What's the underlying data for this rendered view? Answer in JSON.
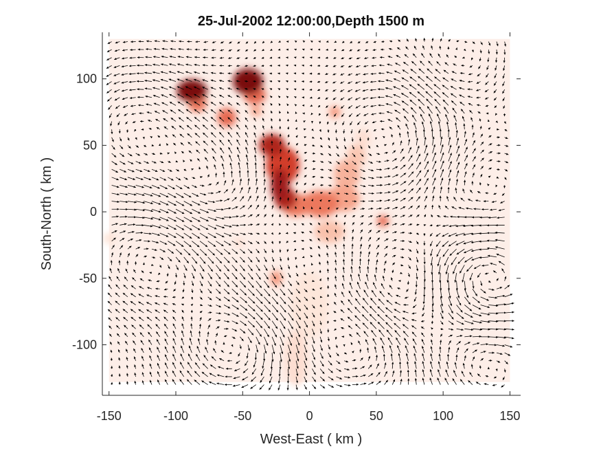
{
  "chart_data": {
    "type": "heatmap",
    "title": "25-Jul-2002 12:00:00,Depth 1500 m",
    "xlabel": "West-East ( km )",
    "ylabel": "South-North ( km )",
    "xlim": [
      -155,
      158
    ],
    "ylim": [
      -138,
      135
    ],
    "xticks": [
      -150,
      -100,
      -50,
      0,
      50,
      100,
      150
    ],
    "yticks": [
      -100,
      -50,
      0,
      50,
      100
    ],
    "xtick_labels": [
      "-150",
      "-100",
      "-50",
      "0",
      "50",
      "100",
      "150"
    ],
    "ytick_labels": [
      "-100",
      "-50",
      "0",
      "50",
      "100"
    ],
    "grid": false,
    "colormap": [
      "#fff4ee",
      "#fbd0bd",
      "#f2876a",
      "#d23c2b",
      "#7a0a0e"
    ],
    "field_background": "#fdeee8",
    "concentration_blobs": [
      {
        "x": -88,
        "y": 91,
        "sx": 8,
        "sy": 6,
        "level": 1.0
      },
      {
        "x": -84,
        "y": 82,
        "sx": 5,
        "sy": 5,
        "level": 0.55
      },
      {
        "x": -46,
        "y": 98,
        "sx": 8,
        "sy": 7,
        "level": 1.0
      },
      {
        "x": -41,
        "y": 88,
        "sx": 6,
        "sy": 5,
        "level": 0.6
      },
      {
        "x": -62,
        "y": 71,
        "sx": 5,
        "sy": 5,
        "level": 0.6
      },
      {
        "x": -40,
        "y": 76,
        "sx": 3,
        "sy": 3,
        "level": 0.4
      },
      {
        "x": 19,
        "y": 75,
        "sx": 3,
        "sy": 3,
        "level": 0.45
      },
      {
        "x": -28,
        "y": 50,
        "sx": 7,
        "sy": 6,
        "level": 0.85
      },
      {
        "x": -20,
        "y": 35,
        "sx": 9,
        "sy": 10,
        "level": 0.75
      },
      {
        "x": -22,
        "y": 20,
        "sx": 5,
        "sy": 9,
        "level": 0.9
      },
      {
        "x": -18,
        "y": 10,
        "sx": 6,
        "sy": 6,
        "level": 0.85
      },
      {
        "x": -10,
        "y": 5,
        "sx": 8,
        "sy": 6,
        "level": 0.55
      },
      {
        "x": 8,
        "y": 6,
        "sx": 10,
        "sy": 7,
        "level": 0.55
      },
      {
        "x": 25,
        "y": 10,
        "sx": 9,
        "sy": 7,
        "level": 0.4
      },
      {
        "x": 28,
        "y": 28,
        "sx": 7,
        "sy": 8,
        "level": 0.35
      },
      {
        "x": 35,
        "y": 42,
        "sx": 5,
        "sy": 6,
        "level": 0.28
      },
      {
        "x": 15,
        "y": -15,
        "sx": 8,
        "sy": 6,
        "level": 0.3
      },
      {
        "x": 55,
        "y": -7,
        "sx": 3,
        "sy": 3,
        "level": 0.6
      },
      {
        "x": -25,
        "y": -50,
        "sx": 3,
        "sy": 4,
        "level": 0.45
      },
      {
        "x": -53,
        "y": -23,
        "sx": 2,
        "sy": 2,
        "level": 0.2
      },
      {
        "x": -150,
        "y": -20,
        "sx": 3,
        "sy": 3,
        "level": 0.12
      },
      {
        "x": -10,
        "y": -110,
        "sx": 6,
        "sy": 15,
        "level": 0.15
      },
      {
        "x": 0,
        "y": -70,
        "sx": 10,
        "sy": 18,
        "level": 0.1
      },
      {
        "x": 40,
        "y": 55,
        "sx": 4,
        "sy": 5,
        "level": 0.15
      }
    ],
    "velocity_eddies": [
      {
        "x": -75,
        "y": 15,
        "strength": 1.2,
        "radius": 30
      },
      {
        "x": -118,
        "y": -40,
        "strength": -1.0,
        "radius": 35
      },
      {
        "x": -55,
        "y": -100,
        "strength": -1.4,
        "radius": 30
      },
      {
        "x": 35,
        "y": -105,
        "strength": 1.0,
        "radius": 30
      },
      {
        "x": 130,
        "y": -50,
        "strength": 1.6,
        "radius": 28
      },
      {
        "x": 75,
        "y": -60,
        "strength": -1.1,
        "radius": 30
      },
      {
        "x": 110,
        "y": 110,
        "strength": -0.8,
        "radius": 30
      },
      {
        "x": 60,
        "y": 50,
        "strength": 0.9,
        "radius": 35
      },
      {
        "x": 120,
        "y": 20,
        "strength": -0.7,
        "radius": 35
      },
      {
        "x": -120,
        "y": 60,
        "strength": 0.9,
        "radius": 40
      },
      {
        "x": 130,
        "y": -110,
        "strength": -1.0,
        "radius": 30
      },
      {
        "x": 0,
        "y": -40,
        "strength": 0.6,
        "radius": 30
      }
    ]
  }
}
